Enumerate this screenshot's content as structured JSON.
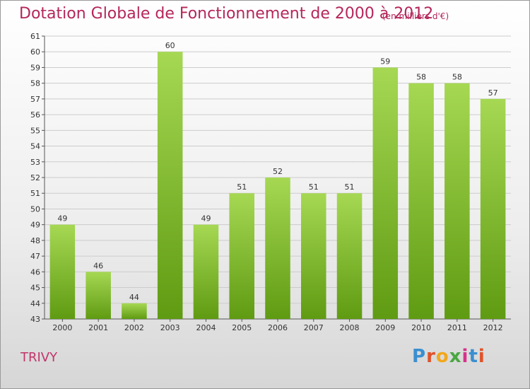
{
  "title": "Dotation Globale de Fonctionnement de 2000 à 2012",
  "unit": "(en milliers d'€)",
  "commune": "TRIVY",
  "logo": {
    "text": "Proxiti",
    "letters": [
      "P",
      "r",
      "o",
      "x",
      "i",
      "t",
      "i"
    ],
    "colors": [
      "#3a8fd0",
      "#e0522a",
      "#f2a81c",
      "#4aa742",
      "#d6328b",
      "#3a8fd0",
      "#e0522a"
    ]
  },
  "colors": {
    "bar_top": "#a6d853",
    "bar_bottom": "#5f9b12",
    "title": "#b5265a",
    "grid": "#cccccc"
  },
  "chart_data": {
    "type": "bar",
    "categories": [
      "2000",
      "2001",
      "2002",
      "2003",
      "2004",
      "2005",
      "2006",
      "2007",
      "2008",
      "2009",
      "2010",
      "2011",
      "2012"
    ],
    "values": [
      49,
      46,
      44,
      60,
      49,
      51,
      52,
      51,
      51,
      59,
      58,
      58,
      57
    ],
    "ylim": [
      43,
      61
    ],
    "yticks": [
      43,
      44,
      45,
      46,
      47,
      48,
      49,
      50,
      51,
      52,
      53,
      54,
      55,
      56,
      57,
      58,
      59,
      60,
      61
    ],
    "grid": true
  }
}
